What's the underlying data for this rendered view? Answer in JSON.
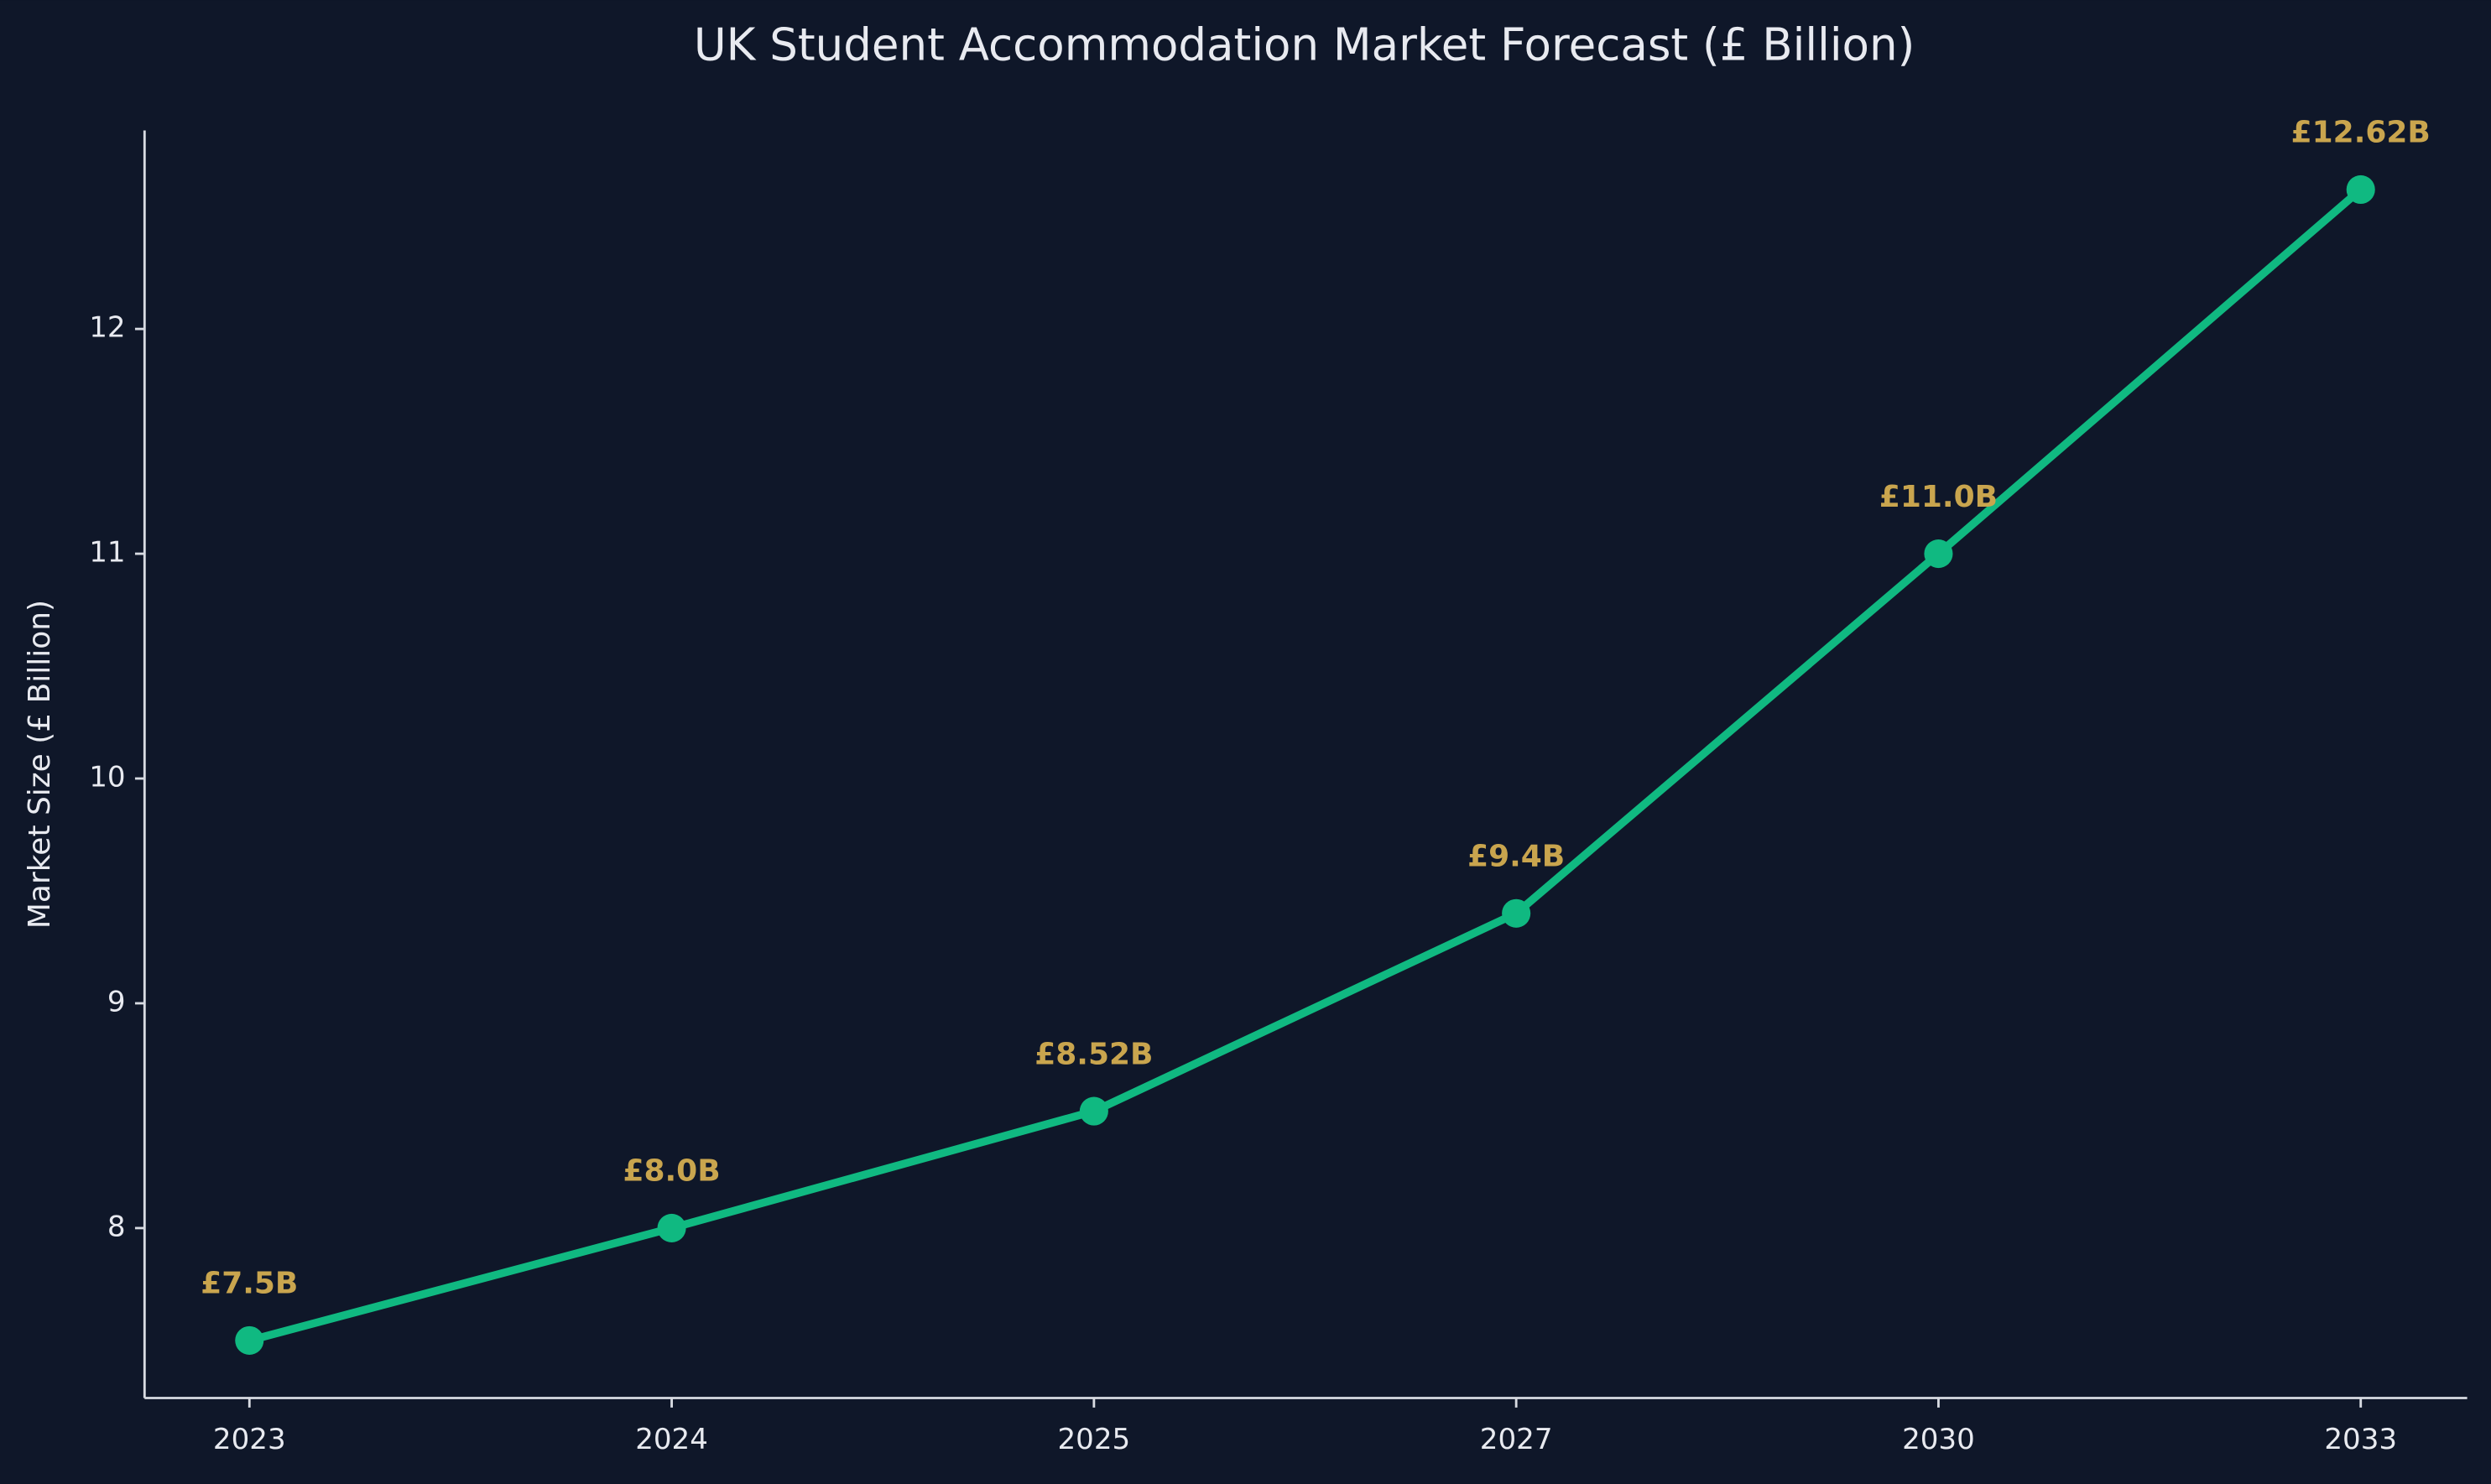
{
  "chart_data": {
    "type": "line",
    "title": "UK Student Accommodation Market Forecast (£ Billion)",
    "y_label": "Market Size (£ Billion)",
    "categories": [
      "2023",
      "2024",
      "2025",
      "2027",
      "2030",
      "2033"
    ],
    "values": [
      7.5,
      8.0,
      8.52,
      9.4,
      11.0,
      12.62
    ],
    "value_labels": [
      "£7.5B",
      "£8.0B",
      "£8.52B",
      "£9.4B",
      "£11.0B",
      "£12.62B"
    ],
    "color": "#10b981",
    "label_color": "#c9a54e",
    "ylim": [
      7.244,
      12.883
    ],
    "yticks": [
      8,
      9,
      10,
      11,
      12
    ],
    "grid": false
  }
}
